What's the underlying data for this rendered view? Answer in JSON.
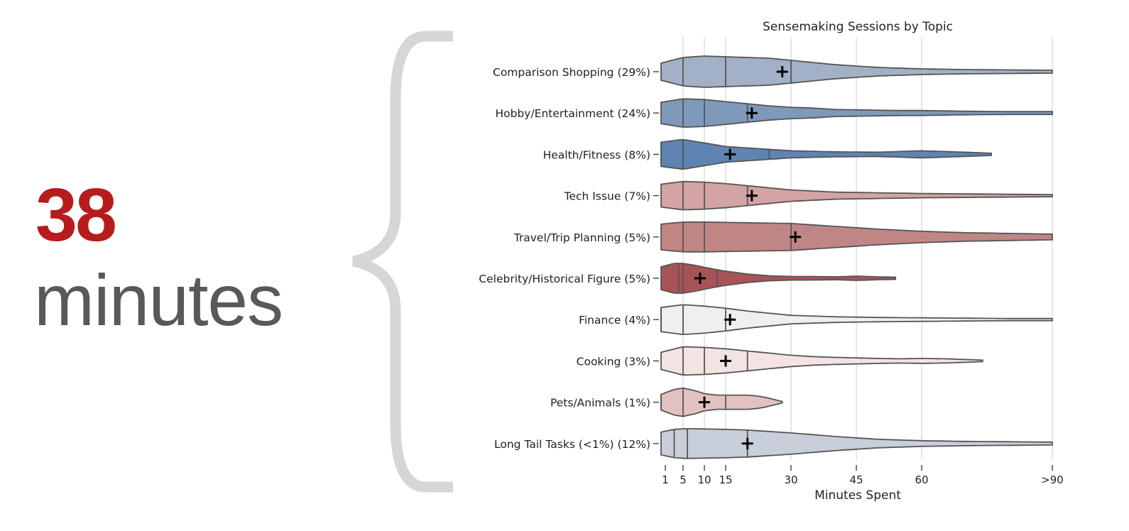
{
  "headline": {
    "value": "38",
    "unit": "minutes"
  },
  "colors": {
    "headline": "#b71c1c",
    "unit": "#595959",
    "brace": "#d6d6d6",
    "outline": "#555555",
    "grid": "#cccccc"
  },
  "chart_data": {
    "type": "violin",
    "orientation": "horizontal",
    "title": "Sensemaking Sessions by Topic",
    "xlabel": "Minutes Spent",
    "ylabel": "",
    "x_ticks": [
      1,
      5,
      10,
      15,
      30,
      45,
      60,
      90
    ],
    "x_tick_labels": [
      "1",
      "5",
      "10",
      "15",
      "30",
      "45",
      "60",
      ">90"
    ],
    "xlim": [
      0,
      90
    ],
    "grid": "vertical",
    "legend": "none",
    "series": [
      {
        "label": "Comparison Shopping (29%)",
        "color": "#a3b1c6",
        "quartiles": [
          5,
          15,
          30
        ],
        "mean": 28,
        "extent": [
          0,
          90
        ],
        "density": [
          [
            0,
            12
          ],
          [
            5,
            20
          ],
          [
            10,
            22
          ],
          [
            15,
            21
          ],
          [
            20,
            20
          ],
          [
            25,
            19
          ],
          [
            30,
            16
          ],
          [
            35,
            13
          ],
          [
            40,
            10
          ],
          [
            45,
            8
          ],
          [
            50,
            6
          ],
          [
            55,
            5
          ],
          [
            60,
            4
          ],
          [
            70,
            3
          ],
          [
            80,
            2.5
          ],
          [
            90,
            2
          ]
        ]
      },
      {
        "label": "Hobby/Entertainment (24%)",
        "color": "#7f99bb",
        "quartiles": [
          5,
          10,
          20
        ],
        "mean": 21,
        "extent": [
          0,
          90
        ],
        "density": [
          [
            0,
            15
          ],
          [
            5,
            20
          ],
          [
            10,
            19
          ],
          [
            15,
            16
          ],
          [
            20,
            13
          ],
          [
            25,
            10
          ],
          [
            30,
            8
          ],
          [
            35,
            7
          ],
          [
            40,
            5
          ],
          [
            45,
            4.5
          ],
          [
            50,
            4
          ],
          [
            55,
            3.5
          ],
          [
            60,
            3.5
          ],
          [
            70,
            2.5
          ],
          [
            80,
            2
          ],
          [
            90,
            2
          ]
        ]
      },
      {
        "label": "Health/Fitness (8%)",
        "color": "#5e84b3",
        "quartiles": [
          0,
          5,
          25
        ],
        "mean": 16,
        "extent": [
          0,
          76
        ],
        "density": [
          [
            0,
            17
          ],
          [
            5,
            21
          ],
          [
            10,
            16
          ],
          [
            15,
            11
          ],
          [
            20,
            9
          ],
          [
            25,
            7
          ],
          [
            30,
            5
          ],
          [
            40,
            3.5
          ],
          [
            50,
            3
          ],
          [
            55,
            4
          ],
          [
            60,
            5
          ],
          [
            65,
            4
          ],
          [
            70,
            3
          ],
          [
            76,
            1.5
          ]
        ]
      },
      {
        "label": "Tech Issue (7%)",
        "color": "#d4a3a3",
        "quartiles": [
          5,
          10,
          20
        ],
        "mean": 21,
        "extent": [
          0,
          90
        ],
        "density": [
          [
            0,
            16
          ],
          [
            5,
            20
          ],
          [
            10,
            19
          ],
          [
            15,
            17
          ],
          [
            20,
            14
          ],
          [
            25,
            11
          ],
          [
            30,
            8
          ],
          [
            40,
            5
          ],
          [
            50,
            4
          ],
          [
            60,
            3
          ],
          [
            70,
            2.5
          ],
          [
            80,
            2
          ],
          [
            90,
            1.5
          ]
        ]
      },
      {
        "label": "Travel/Trip Planning (5%)",
        "color": "#c08686",
        "quartiles": [
          5,
          10,
          30
        ],
        "mean": 31,
        "extent": [
          0,
          90
        ],
        "density": [
          [
            0,
            18
          ],
          [
            5,
            21
          ],
          [
            10,
            21
          ],
          [
            15,
            20.5
          ],
          [
            20,
            20
          ],
          [
            25,
            19.5
          ],
          [
            30,
            19
          ],
          [
            40,
            15
          ],
          [
            50,
            11
          ],
          [
            60,
            8
          ],
          [
            70,
            6
          ],
          [
            80,
            5
          ],
          [
            90,
            4
          ]
        ]
      },
      {
        "label": "Celebrity/Historical Figure (5%)",
        "color": "#a85357",
        "quartiles": [
          4,
          5,
          13
        ],
        "mean": 9,
        "extent": [
          0,
          54
        ],
        "density": [
          [
            0,
            16
          ],
          [
            3,
            21
          ],
          [
            5,
            21
          ],
          [
            8,
            18
          ],
          [
            12,
            13
          ],
          [
            15,
            10
          ],
          [
            20,
            6
          ],
          [
            25,
            3.5
          ],
          [
            30,
            2.5
          ],
          [
            35,
            2.5
          ],
          [
            40,
            2
          ],
          [
            45,
            3
          ],
          [
            50,
            2
          ],
          [
            54,
            1.5
          ]
        ]
      },
      {
        "label": "Finance (4%)",
        "color": "#efefef",
        "quartiles": [
          0,
          5,
          15
        ],
        "mean": 16,
        "extent": [
          0,
          90
        ],
        "density": [
          [
            0,
            17
          ],
          [
            5,
            21
          ],
          [
            10,
            19
          ],
          [
            15,
            16
          ],
          [
            20,
            12
          ],
          [
            25,
            9
          ],
          [
            30,
            6
          ],
          [
            40,
            4
          ],
          [
            50,
            3
          ],
          [
            60,
            2.5
          ],
          [
            70,
            2
          ],
          [
            80,
            1.5
          ],
          [
            90,
            1.5
          ]
        ]
      },
      {
        "label": "Cooking (3%)",
        "color": "#f3e3e3",
        "quartiles": [
          5,
          10,
          20
        ],
        "mean": 15,
        "extent": [
          0,
          74
        ],
        "density": [
          [
            0,
            12
          ],
          [
            5,
            20
          ],
          [
            10,
            19
          ],
          [
            15,
            17
          ],
          [
            20,
            14
          ],
          [
            25,
            11
          ],
          [
            30,
            8
          ],
          [
            35,
            6
          ],
          [
            40,
            5
          ],
          [
            50,
            3.5
          ],
          [
            55,
            3
          ],
          [
            60,
            3.5
          ],
          [
            65,
            3
          ],
          [
            70,
            2
          ],
          [
            74,
            1
          ]
        ]
      },
      {
        "label": "Pets/Animals (1%)",
        "color": "#e2c1c1",
        "quartiles": [
          0,
          5,
          15
        ],
        "mean": 10,
        "extent": [
          0,
          28
        ],
        "density": [
          [
            0,
            11
          ],
          [
            3,
            18
          ],
          [
            5,
            20
          ],
          [
            8,
            16
          ],
          [
            10,
            12
          ],
          [
            13,
            10
          ],
          [
            15,
            10
          ],
          [
            18,
            10
          ],
          [
            20,
            10
          ],
          [
            22,
            9
          ],
          [
            24,
            7
          ],
          [
            26,
            4
          ],
          [
            28,
            1
          ]
        ]
      },
      {
        "label": "Long Tail Tasks (<1%) (12%)",
        "color": "#c8cfda",
        "quartiles": [
          3,
          6,
          20
        ],
        "mean": 20,
        "extent": [
          0,
          90
        ],
        "density": [
          [
            0,
            16
          ],
          [
            3,
            20
          ],
          [
            6,
            21
          ],
          [
            10,
            20.5
          ],
          [
            15,
            20
          ],
          [
            20,
            19
          ],
          [
            25,
            17
          ],
          [
            30,
            15
          ],
          [
            40,
            10
          ],
          [
            50,
            6
          ],
          [
            60,
            4
          ],
          [
            70,
            3
          ],
          [
            80,
            2.5
          ],
          [
            90,
            2
          ]
        ]
      }
    ]
  }
}
